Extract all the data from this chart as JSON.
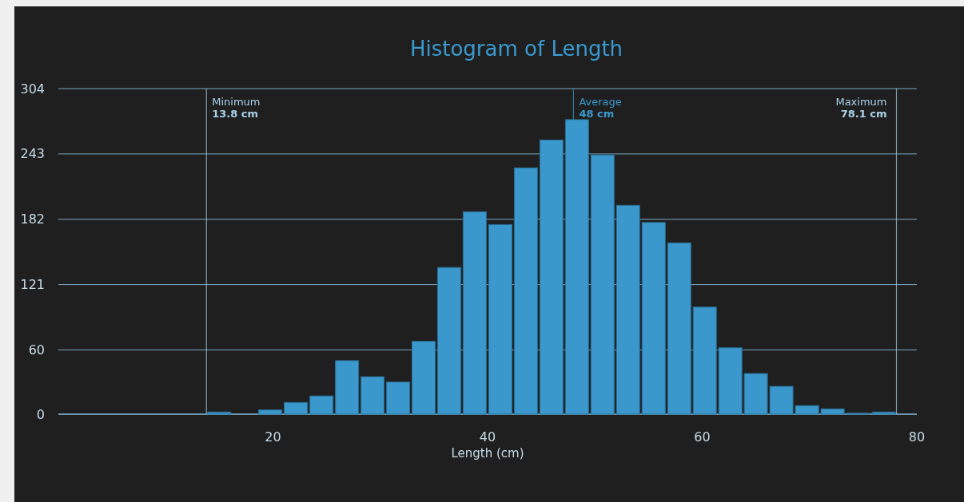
{
  "chart_data": {
    "type": "histogram",
    "title": "Histogram of Length",
    "xlabel": "Length (cm)",
    "bins": [
      13.8,
      16.18,
      18.56,
      20.94,
      23.33,
      25.71,
      28.09,
      30.47,
      32.85,
      35.23,
      37.61,
      39.99,
      42.38,
      44.76,
      47.14,
      49.52,
      51.9,
      54.28,
      56.67,
      59.05,
      61.43,
      63.81,
      66.19,
      68.57,
      70.96,
      73.34,
      75.72,
      78.1
    ],
    "values": [
      2,
      0,
      4,
      11,
      17,
      50,
      35,
      30,
      68,
      137,
      189,
      177,
      230,
      256,
      275,
      242,
      195,
      179,
      160,
      100,
      62,
      38,
      26,
      8,
      5,
      1,
      2
    ],
    "color": "#3a98cc",
    "xlim": [
      0,
      80
    ],
    "xticks": [
      20,
      40,
      60,
      80
    ],
    "ylim": [
      0,
      304
    ],
    "yticks": [
      0,
      60,
      121,
      182,
      243,
      304
    ],
    "grid": "y",
    "ref_lines": [
      {
        "axis": "x",
        "value": 13.8,
        "label": "Minimum\n13.8 cm",
        "color": "#a9d0ea"
      },
      {
        "axis": "x",
        "value": 48,
        "label": "Average\n48 cm",
        "color": "#3a9ad0"
      },
      {
        "axis": "x",
        "value": 78.1,
        "label": "Maximum\n78.1 cm",
        "color": "#a9d0ea"
      }
    ]
  }
}
